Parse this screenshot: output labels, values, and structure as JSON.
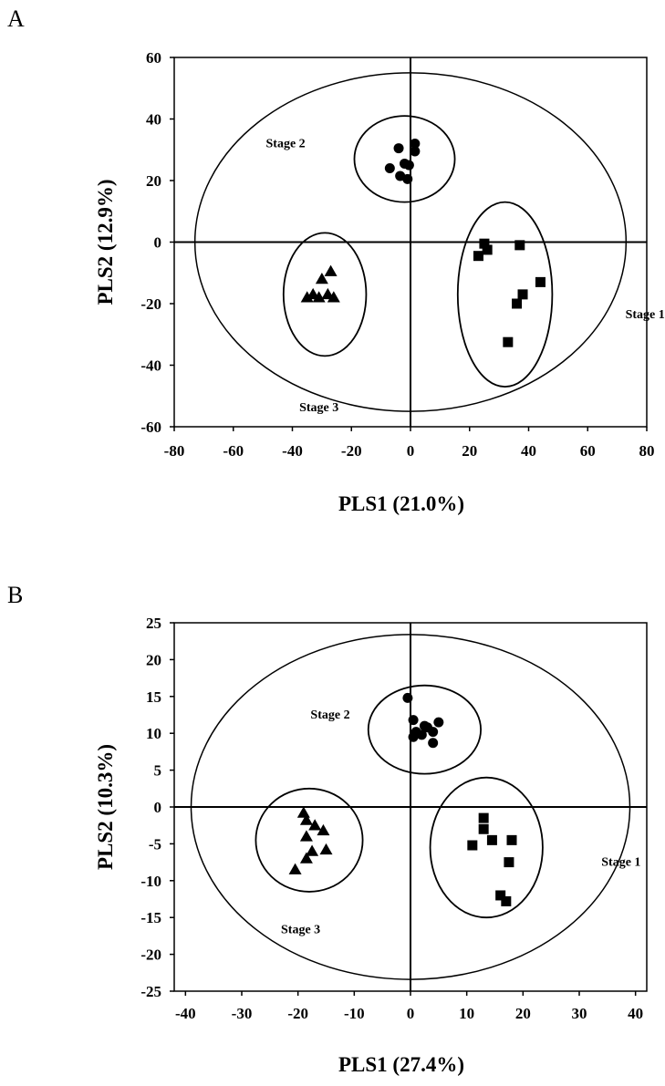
{
  "chart_data": [
    {
      "panel": "A",
      "type": "scatter",
      "xlabel": "PLS1 (21.0%)",
      "ylabel": "PLS2 (12.9%)",
      "xlim": [
        -80,
        80
      ],
      "ylim": [
        -60,
        60
      ],
      "xticks": [
        -80,
        -60,
        -40,
        -20,
        0,
        20,
        40,
        60,
        80
      ],
      "yticks": [
        60,
        40,
        20,
        0,
        -20,
        -40,
        -60
      ],
      "grid": false,
      "confidence_ellipse": {
        "cx": 0,
        "cy": 0,
        "rx": 73,
        "ry": 55
      },
      "groups": [
        {
          "name": "Stage 2",
          "marker": "circle",
          "ellipse": {
            "cx": -2,
            "cy": 27,
            "rx": 17,
            "ry": 14
          },
          "points": [
            [
              -4,
              30.5
            ],
            [
              1.5,
              32
            ],
            [
              1.5,
              29.5
            ],
            [
              -2,
              25.5
            ],
            [
              -0.5,
              25
            ],
            [
              -7,
              24
            ],
            [
              -3.5,
              21.5
            ],
            [
              -1,
              20.5
            ]
          ]
        },
        {
          "name": "Stage 1",
          "marker": "square",
          "ellipse": {
            "cx": 32,
            "cy": -17,
            "rx": 16,
            "ry": 30
          },
          "points": [
            [
              25,
              -0.5
            ],
            [
              26,
              -2.5
            ],
            [
              37,
              -1
            ],
            [
              23,
              -4.5
            ],
            [
              44,
              -13
            ],
            [
              38,
              -17
            ],
            [
              36,
              -20
            ],
            [
              33,
              -32.5
            ]
          ]
        },
        {
          "name": "Stage 3",
          "marker": "triangle",
          "ellipse": {
            "cx": -29,
            "cy": -17,
            "rx": 14,
            "ry": 20
          },
          "points": [
            [
              -27,
              -9.5
            ],
            [
              -30,
              -12
            ],
            [
              -33,
              -17
            ],
            [
              -28,
              -17
            ],
            [
              -31,
              -18
            ],
            [
              -35,
              -18
            ],
            [
              -26,
              -18
            ]
          ]
        }
      ]
    },
    {
      "panel": "B",
      "type": "scatter",
      "xlabel": "PLS1 (27.4%)",
      "ylabel": "PLS2 (10.3%)",
      "xlim": [
        -42,
        42
      ],
      "ylim": [
        -25,
        25
      ],
      "xticks": [
        -40,
        -30,
        -20,
        -10,
        0,
        10,
        20,
        30,
        40
      ],
      "yticks": [
        25,
        20,
        15,
        10,
        5,
        0,
        -5,
        -10,
        -15,
        -20,
        -25
      ],
      "grid": false,
      "confidence_ellipse": {
        "cx": 0,
        "cy": 0,
        "rx": 39,
        "ry": 23.4
      },
      "groups": [
        {
          "name": "Stage 2",
          "marker": "circle",
          "ellipse": {
            "cx": 2.5,
            "cy": 10.5,
            "rx": 10,
            "ry": 6
          },
          "points": [
            [
              -0.5,
              14.8
            ],
            [
              0.5,
              11.8
            ],
            [
              1,
              10.2
            ],
            [
              2,
              9.8
            ],
            [
              3,
              10.8
            ],
            [
              4,
              10.2
            ],
            [
              5,
              11.5
            ],
            [
              2.5,
              11
            ],
            [
              4,
              8.7
            ],
            [
              0.5,
              9.5
            ]
          ]
        },
        {
          "name": "Stage 1",
          "marker": "square",
          "ellipse": {
            "cx": 13.5,
            "cy": -5.5,
            "rx": 10,
            "ry": 9.5
          },
          "points": [
            [
              13,
              -1.5
            ],
            [
              13,
              -3
            ],
            [
              14.5,
              -4.5
            ],
            [
              18,
              -4.5
            ],
            [
              11,
              -5.2
            ],
            [
              17.5,
              -7.5
            ],
            [
              16,
              -12
            ],
            [
              17,
              -12.8
            ]
          ]
        },
        {
          "name": "Stage 3",
          "marker": "triangle",
          "ellipse": {
            "cx": -18,
            "cy": -4.5,
            "rx": 9.5,
            "ry": 7
          },
          "points": [
            [
              -19,
              -0.8
            ],
            [
              -18.5,
              -1.8
            ],
            [
              -17,
              -2.5
            ],
            [
              -15.5,
              -3.2
            ],
            [
              -18.5,
              -4
            ],
            [
              -15,
              -5.8
            ],
            [
              -17.5,
              -6
            ],
            [
              -18.5,
              -7
            ],
            [
              -20.5,
              -8.5
            ]
          ]
        }
      ]
    }
  ]
}
